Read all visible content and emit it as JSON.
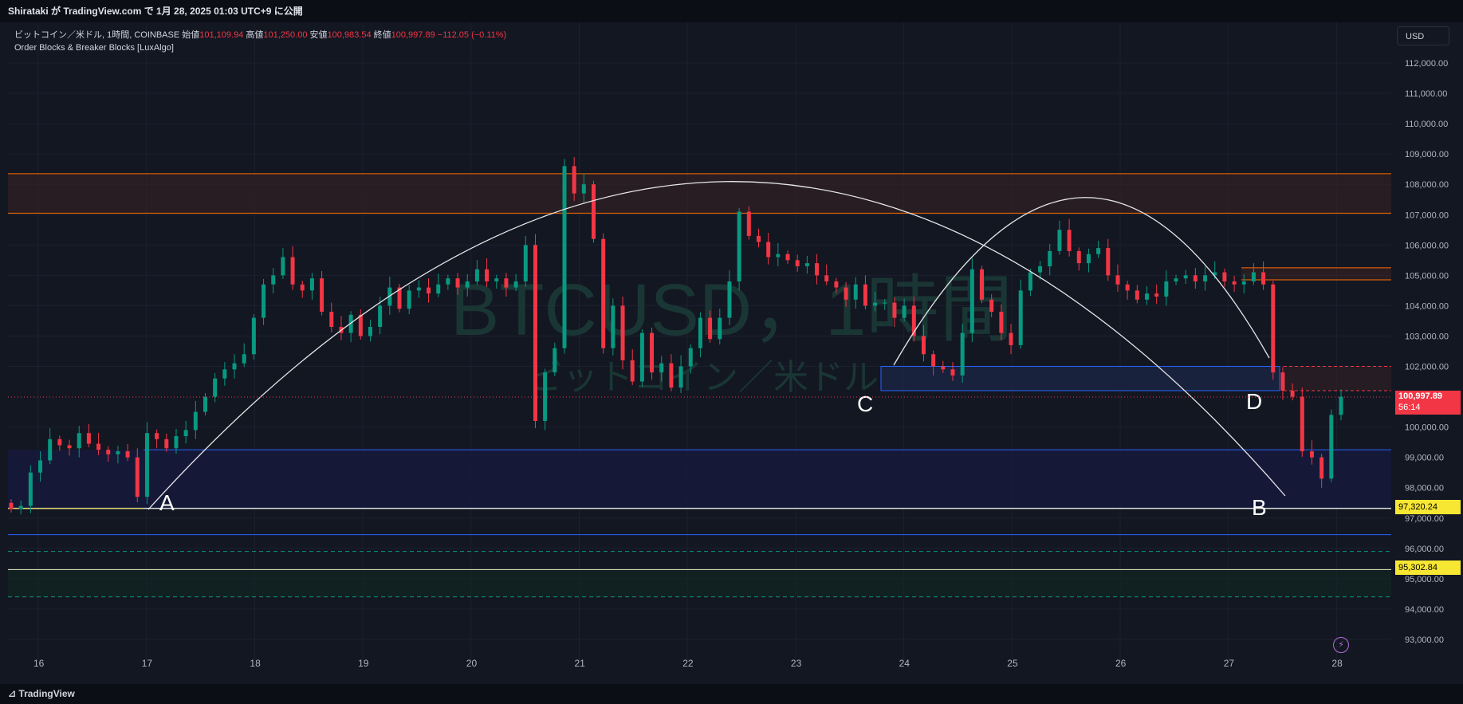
{
  "header": {
    "publish_text": "Shirataki が TradingView.com で 1月 28, 2025 01:03 UTC+9 に公開"
  },
  "legend": {
    "symbol": "ビットコイン／米ドル, 1時間, COINBASE",
    "open_label": "始値",
    "open_value": "101,109.94",
    "high_label": "高値",
    "high_value": "101,250.00",
    "low_label": "安値",
    "low_value": "100,983.54",
    "close_label": "終値",
    "close_value": "100,997.89",
    "change": "−112.05 (−0.11%)",
    "indicator": "Order Blocks & Breaker Blocks [LuxAlgo]"
  },
  "watermark": {
    "line1": "BTCUSD，1時間",
    "line2": "ビットコイン／米ドル"
  },
  "currency_button": "USD",
  "price_axis": {
    "ticks": [
      "112,000.00",
      "111,000.00",
      "110,000.00",
      "109,000.00",
      "108,000.00",
      "107,000.00",
      "106,000.00",
      "105,000.00",
      "104,000.00",
      "103,000.00",
      "102,000.00",
      "100,000.00",
      "99,000.00",
      "98,000.00",
      "97,000.00",
      "96,000.00",
      "95,000.00",
      "94,000.00",
      "93,000.00"
    ],
    "current_price": "100,997.89",
    "countdown": "56:14",
    "level_1": "97,320.24",
    "level_2": "95,302.84"
  },
  "time_axis": {
    "ticks": [
      "16",
      "17",
      "18",
      "19",
      "20",
      "21",
      "22",
      "23",
      "24",
      "25",
      "26",
      "27",
      "28"
    ]
  },
  "annotations": {
    "a": "A",
    "b": "B",
    "c": "C",
    "d": "D"
  },
  "footer": {
    "brand": "TradingView"
  },
  "colors": {
    "background": "#131722",
    "up": "#089981",
    "down": "#f23645",
    "bearish_block": "#ff6d00",
    "bullish_block": "#2962ff",
    "arc": "#e0e0e0"
  },
  "chart_data": {
    "type": "candlestick",
    "x_start": "16",
    "x_end": "28",
    "ylim": [
      92500,
      113000
    ],
    "closes": [
      97300,
      97400,
      98500,
      98900,
      99600,
      99400,
      99300,
      99800,
      99450,
      99250,
      99100,
      99200,
      99000,
      97700,
      99800,
      99600,
      99300,
      99700,
      99900,
      100500,
      101000,
      101600,
      101900,
      102100,
      102400,
      103600,
      104700,
      105000,
      105600,
      104700,
      104500,
      104900,
      103800,
      103300,
      103100,
      103700,
      103000,
      103300,
      104000,
      104600,
      103900,
      104500,
      104600,
      104400,
      104700,
      104900,
      104600,
      104800,
      105200,
      104800,
      104900,
      104600,
      104800,
      106000,
      100200,
      101800,
      102600,
      108600,
      107700,
      108000,
      106200,
      102600,
      104000,
      102200,
      101500,
      103100,
      101800,
      102100,
      101300,
      102000,
      102600,
      103600,
      102900,
      103600,
      104800,
      107100,
      106300,
      106100,
      105600,
      105700,
      105500,
      105300,
      105400,
      105000,
      104800,
      104600,
      104200,
      104700,
      104000,
      104100,
      104100,
      103600,
      104000,
      103000,
      102400,
      102000,
      101900,
      101700,
      103100,
      105200,
      104200,
      103800,
      103100,
      102700,
      104500,
      105100,
      105300,
      105800,
      106500,
      105800,
      105400,
      105700,
      105900,
      105000,
      104700,
      104500,
      104200,
      104400,
      104300,
      104800,
      104900,
      105000,
      104800,
      105000,
      105100,
      104800,
      104700,
      104800,
      105100,
      104700,
      101800,
      101200,
      101000,
      99200,
      99000,
      98300,
      100400,
      101000
    ]
  }
}
